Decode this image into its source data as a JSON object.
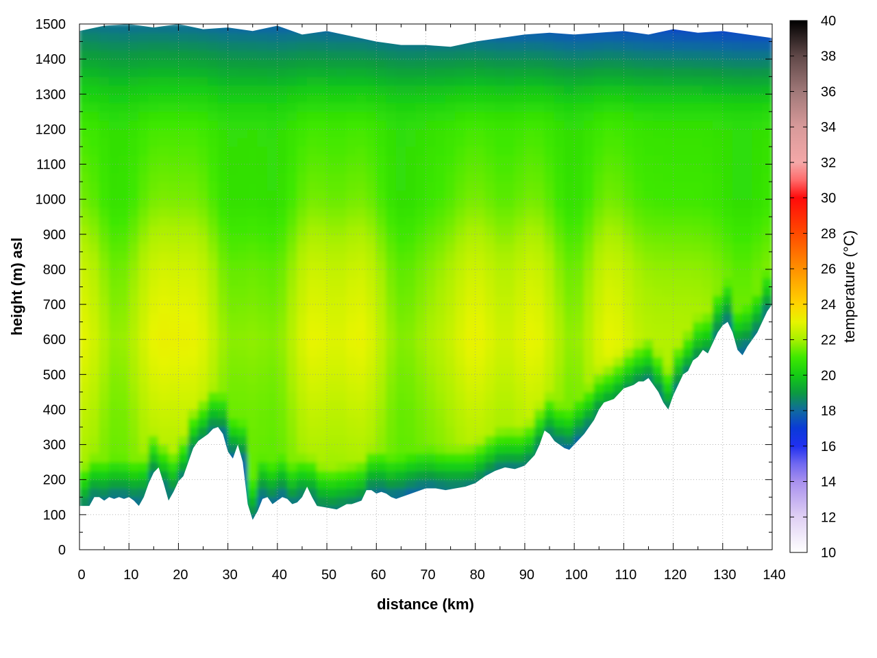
{
  "chart_data": {
    "type": "heatmap",
    "title": "",
    "xlabel": "distance (km)",
    "ylabel": "height (m) asl",
    "xlim": [
      0,
      140
    ],
    "ylim": [
      0,
      1500
    ],
    "x_ticks": [
      "0",
      "10",
      "20",
      "30",
      "40",
      "50",
      "60",
      "70",
      "80",
      "90",
      "100",
      "110",
      "120",
      "130",
      "140"
    ],
    "y_ticks": [
      "0",
      "100",
      "200",
      "300",
      "400",
      "500",
      "600",
      "700",
      "800",
      "900",
      "1000",
      "1100",
      "1200",
      "1300",
      "1400",
      "1500"
    ],
    "grid": true,
    "colorbar": {
      "label": "temperature (°C)",
      "range": [
        10,
        40
      ],
      "ticks": [
        "10",
        "12",
        "14",
        "16",
        "18",
        "20",
        "22",
        "24",
        "26",
        "28",
        "30",
        "32",
        "34",
        "36",
        "38",
        "40"
      ],
      "colors": [
        [
          10,
          "#ffffff"
        ],
        [
          12,
          "#e0d0f4"
        ],
        [
          14,
          "#a890ee"
        ],
        [
          15,
          "#7068f0"
        ],
        [
          16,
          "#2030f0"
        ],
        [
          17,
          "#0a3ad8"
        ],
        [
          18,
          "#106aa0"
        ],
        [
          19,
          "#0c9a40"
        ],
        [
          20,
          "#14cc14"
        ],
        [
          21,
          "#3ee800"
        ],
        [
          22,
          "#a8f000"
        ],
        [
          23,
          "#e6f400"
        ],
        [
          24,
          "#ffd400"
        ],
        [
          26,
          "#ff9000"
        ],
        [
          28,
          "#ff4a00"
        ],
        [
          30,
          "#ff0a0a"
        ],
        [
          31,
          "#ff6a6a"
        ],
        [
          32,
          "#f4a8a8"
        ],
        [
          34,
          "#d89a9a"
        ],
        [
          36,
          "#a07878"
        ],
        [
          38,
          "#604848"
        ],
        [
          40,
          "#000000"
        ]
      ]
    },
    "terrain_profile": {
      "x": [
        0,
        2,
        3,
        4,
        5,
        6,
        7,
        8,
        9,
        10,
        11,
        12,
        13,
        14,
        15,
        16,
        17,
        18,
        19,
        20,
        21,
        22,
        23,
        24,
        25,
        26,
        27,
        28,
        29,
        30,
        31,
        32,
        33,
        34,
        35,
        36,
        37,
        38,
        39,
        40,
        41,
        42,
        43,
        44,
        45,
        46,
        47,
        48,
        50,
        52,
        54,
        55,
        56,
        57,
        58,
        59,
        60,
        61,
        62,
        63,
        64,
        65,
        66,
        68,
        70,
        72,
        74,
        76,
        78,
        80,
        82,
        84,
        86,
        88,
        90,
        92,
        93,
        94,
        95,
        96,
        97,
        98,
        99,
        100,
        102,
        104,
        105,
        106,
        108,
        110,
        112,
        113,
        114,
        115,
        116,
        117,
        118,
        119,
        120,
        121,
        122,
        123,
        124,
        125,
        126,
        127,
        128,
        129,
        130,
        131,
        132,
        133,
        134,
        135,
        136,
        137,
        138,
        139,
        140
      ],
      "y": [
        125,
        125,
        150,
        150,
        140,
        150,
        145,
        150,
        145,
        150,
        140,
        125,
        150,
        190,
        220,
        235,
        190,
        140,
        165,
        195,
        210,
        250,
        290,
        310,
        320,
        330,
        345,
        350,
        330,
        280,
        260,
        300,
        250,
        130,
        85,
        110,
        145,
        150,
        130,
        140,
        150,
        145,
        130,
        135,
        150,
        180,
        150,
        125,
        120,
        115,
        130,
        130,
        135,
        140,
        170,
        170,
        160,
        165,
        160,
        150,
        145,
        150,
        155,
        165,
        175,
        175,
        170,
        175,
        180,
        190,
        210,
        225,
        235,
        230,
        240,
        270,
        300,
        340,
        330,
        310,
        300,
        290,
        285,
        300,
        330,
        370,
        400,
        420,
        430,
        460,
        470,
        480,
        480,
        490,
        470,
        450,
        420,
        400,
        440,
        470,
        500,
        510,
        540,
        550,
        570,
        560,
        590,
        620,
        640,
        650,
        620,
        570,
        555,
        580,
        600,
        620,
        650,
        680,
        700
      ]
    },
    "data_top": {
      "x": [
        0,
        5,
        10,
        15,
        20,
        25,
        30,
        35,
        40,
        45,
        50,
        55,
        60,
        65,
        70,
        75,
        80,
        85,
        90,
        95,
        100,
        105,
        110,
        115,
        120,
        125,
        130,
        135,
        140
      ],
      "y": [
        1480,
        1495,
        1500,
        1490,
        1500,
        1485,
        1490,
        1480,
        1495,
        1470,
        1480,
        1465,
        1450,
        1440,
        1440,
        1435,
        1450,
        1460,
        1470,
        1475,
        1470,
        1475,
        1480,
        1470,
        1485,
        1475,
        1480,
        1470,
        1460
      ]
    },
    "vertical_profile": {
      "height": [
        0,
        200,
        400,
        600,
        800,
        1000,
        1200,
        1300,
        1400,
        1500
      ],
      "temperature": [
        22.0,
        21.5,
        21.8,
        22.2,
        21.8,
        21.0,
        20.8,
        20.2,
        19.5,
        18.8
      ]
    },
    "warm_bands_km": [
      1,
      16,
      24,
      47,
      57,
      80,
      92,
      107
    ],
    "cold_bands_km": [
      7,
      30,
      40,
      65,
      100,
      134
    ]
  }
}
